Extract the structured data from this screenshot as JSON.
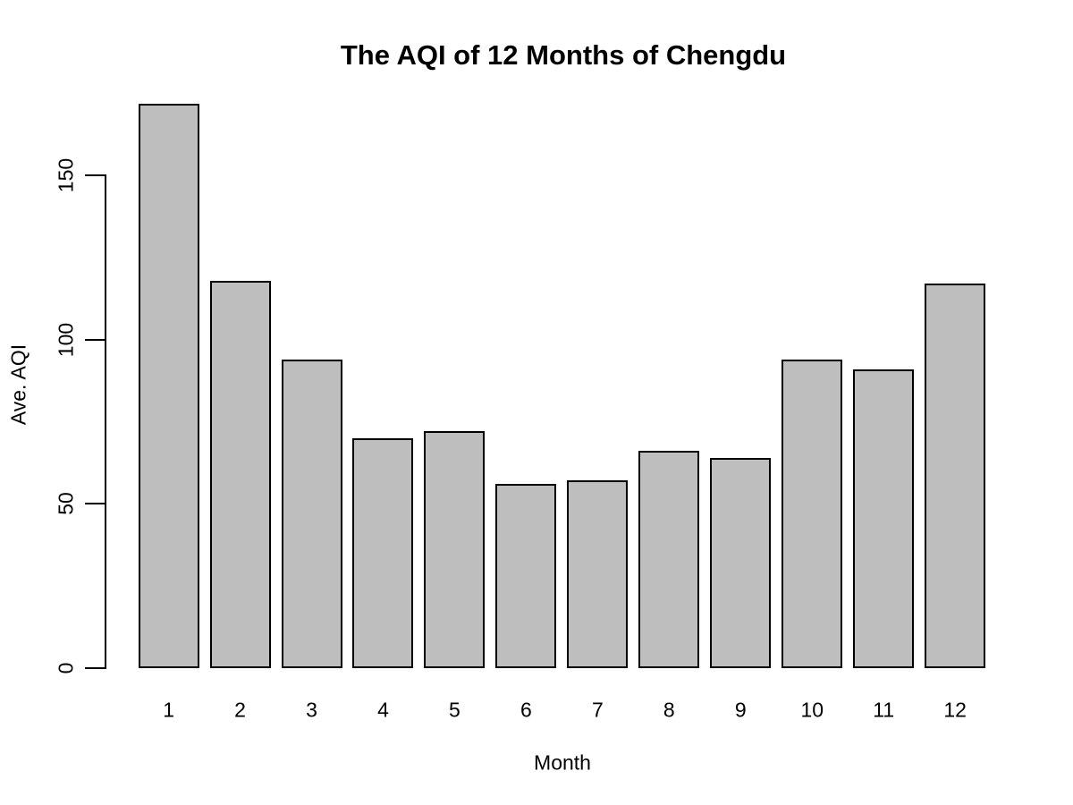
{
  "chart_data": {
    "type": "bar",
    "title": "The AQI of 12 Months of Chengdu",
    "xlabel": "Month",
    "ylabel": "Ave. AQI",
    "categories": [
      "1",
      "2",
      "3",
      "4",
      "5",
      "6",
      "7",
      "8",
      "9",
      "10",
      "11",
      "12"
    ],
    "values": [
      172,
      118,
      94,
      70,
      72,
      56,
      57,
      66,
      64,
      94,
      91,
      117
    ],
    "ylim": [
      0,
      172
    ],
    "yticks": [
      0,
      50,
      100,
      150
    ],
    "ytick_labels": [
      "0",
      "50",
      "100",
      "150"
    ],
    "grid": false,
    "legend": null,
    "bar_fill_color": "#BEBEBE",
    "bar_border_color": "#000000",
    "axis_color": "#000000",
    "text_color": "#000000",
    "background_color": "#FFFFFF"
  }
}
